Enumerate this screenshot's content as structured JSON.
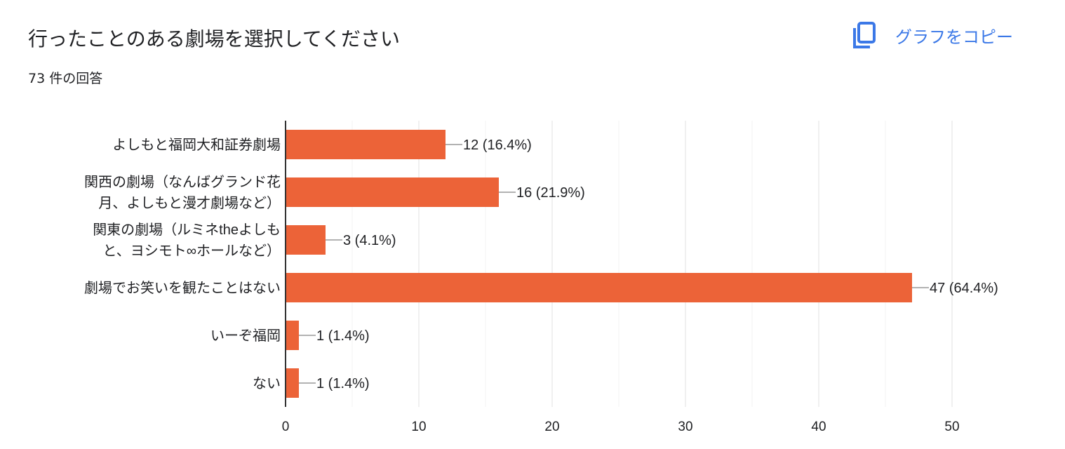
{
  "header": {
    "title": "行ったことのある劇場を選択してください",
    "response_count": "73 件の回答",
    "copy_button": "グラフをコピー",
    "copy_icon": "copy-icon"
  },
  "colors": {
    "bar": "#ec6338",
    "accent": "#3b78e7"
  },
  "chart_data": {
    "type": "bar",
    "orientation": "horizontal",
    "categories": [
      [
        "よしもと福岡大和証券劇場"
      ],
      [
        "関西の劇場（なんばグランド花",
        "月、よしもと漫才劇場など）"
      ],
      [
        "関東の劇場（ルミネtheよしも",
        "と、ヨシモト∞ホールなど）"
      ],
      [
        "劇場でお笑いを観たことはない"
      ],
      [
        "いーぞ福岡"
      ],
      [
        "ない"
      ]
    ],
    "values": [
      12,
      16,
      3,
      47,
      1,
      1
    ],
    "data_labels": [
      "12 (16.4%)",
      "16 (21.9%)",
      "3 (4.1%)",
      "47 (64.4%)",
      "1 (1.4%)",
      "1 (1.4%)"
    ],
    "xlim": [
      0,
      50
    ],
    "xticks": [
      "0",
      "10",
      "20",
      "30",
      "40",
      "50"
    ],
    "grid": true
  }
}
